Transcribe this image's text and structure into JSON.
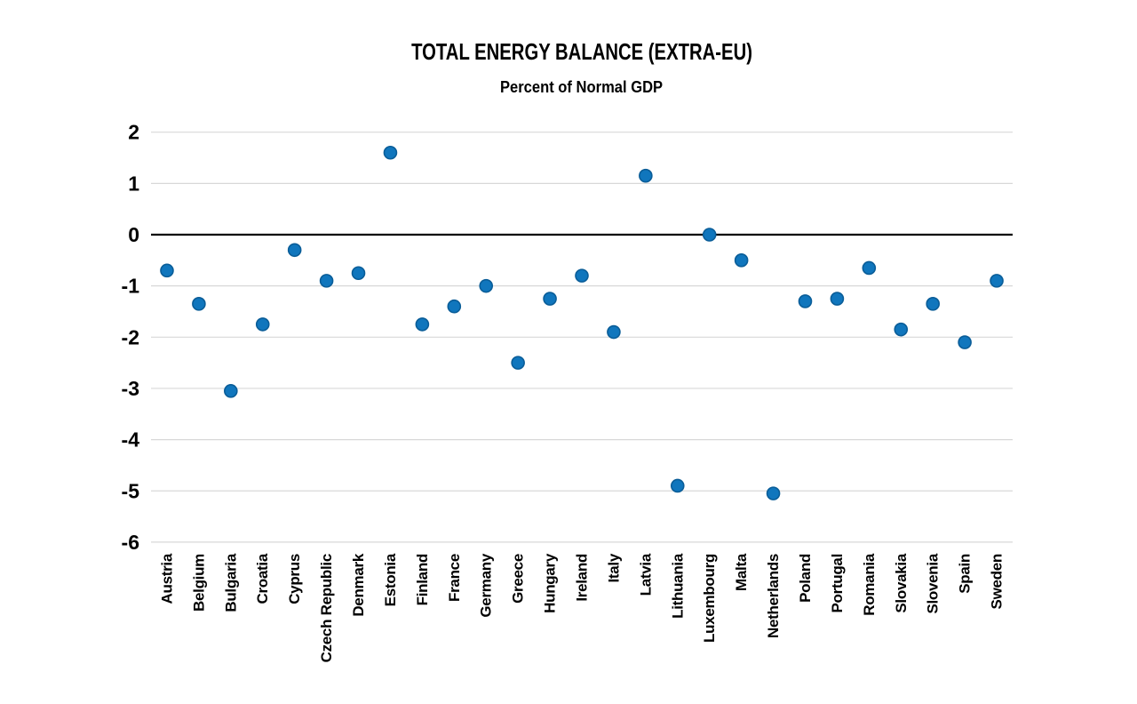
{
  "chart_data": {
    "type": "scatter",
    "title": "TOTAL ENERGY BALANCE (EXTRA-EU)",
    "subtitle": "Percent of Normal GDP",
    "xlabel": "",
    "ylabel": "",
    "categories": [
      "Austria",
      "Belgium",
      "Bulgaria",
      "Croatia",
      "Cyprus",
      "Czech Republic",
      "Denmark",
      "Estonia",
      "Finland",
      "France",
      "Germany",
      "Greece",
      "Hungary",
      "Ireland",
      "Italy",
      "Latvia",
      "Lithuania",
      "Luxembourg",
      "Malta",
      "Netherlands",
      "Poland",
      "Portugal",
      "Romania",
      "Slovakia",
      "Slovenia",
      "Spain",
      "Sweden"
    ],
    "values": [
      -0.7,
      -1.35,
      -3.05,
      -1.75,
      -0.3,
      -0.9,
      -0.75,
      1.6,
      -1.75,
      -1.4,
      -1.0,
      -2.5,
      -1.25,
      -0.8,
      -1.9,
      1.15,
      -4.9,
      0.0,
      -0.5,
      -5.05,
      -1.3,
      -1.25,
      -0.65,
      -1.85,
      -1.35,
      -2.1,
      -0.9
    ],
    "ylim": [
      -6,
      2
    ],
    "yticks": [
      2,
      1,
      0,
      -1,
      -2,
      -3,
      -4,
      -5,
      -6
    ],
    "grid": "horizontal",
    "zero_line": true,
    "legend": "none",
    "colors": {
      "point_fill": "#1076bd",
      "point_stroke": "#0a5d98",
      "gridline": "#d8d8d8",
      "zero_line": "#000000",
      "text": "#000000",
      "background": "#ffffff"
    }
  }
}
